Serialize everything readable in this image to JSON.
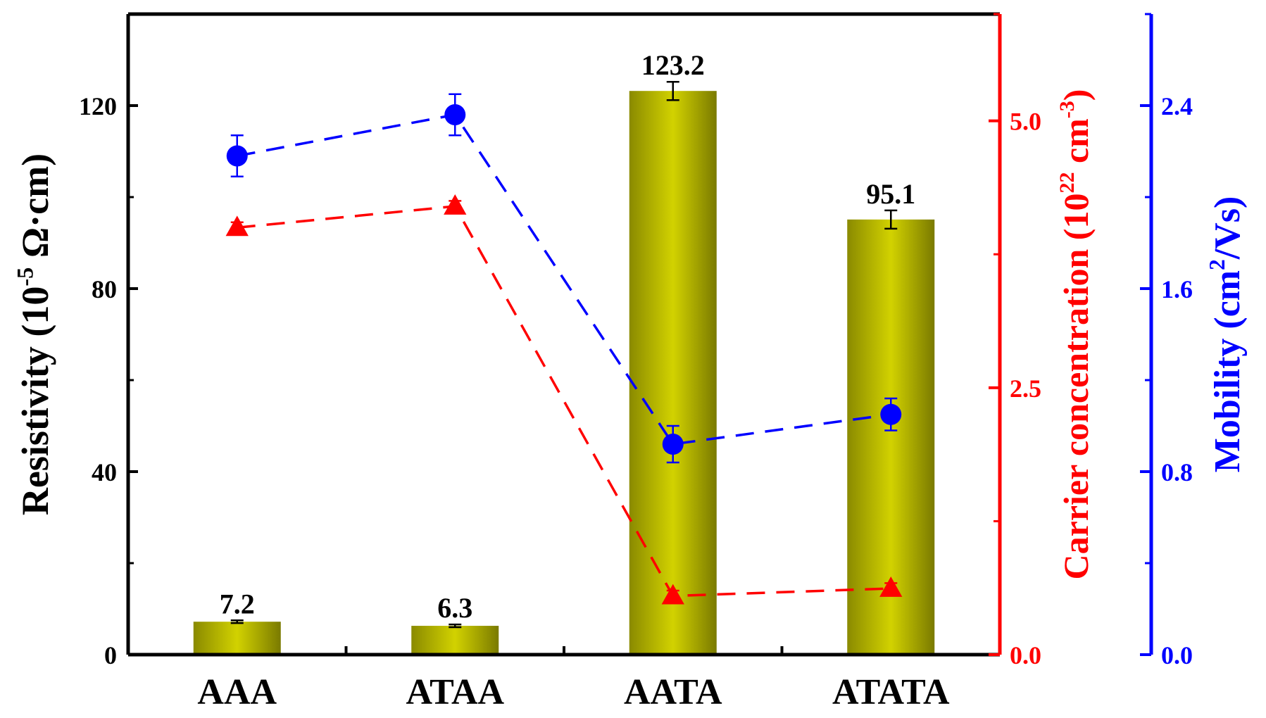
{
  "chart_data": {
    "type": "bar",
    "categories": [
      "AAA",
      "ATAA",
      "AATA",
      "ATATA"
    ],
    "series": [
      {
        "values": [
          7.2,
          6.3,
          123.2,
          95.1
        ],
        "errors": [
          0.3,
          0.3,
          2.0,
          2.0
        ],
        "data_labels": [
          "7.2",
          "6.3",
          "123.2",
          "95.1"
        ],
        "axis": "left",
        "color": "#bdbd00",
        "kind": "bar"
      },
      {
        "values": [
          4.0,
          4.2,
          0.55,
          0.62
        ],
        "errors": [
          0.05,
          0.05,
          0.05,
          0.05
        ],
        "axis": "right1",
        "color": "#ff0000",
        "kind": "line",
        "marker": "triangle"
      },
      {
        "values": [
          2.18,
          2.36,
          0.92,
          1.05
        ],
        "errors": [
          0.09,
          0.09,
          0.08,
          0.07
        ],
        "axis": "right2",
        "color": "#0000ff",
        "kind": "line",
        "marker": "circle"
      }
    ],
    "axes": {
      "left": {
        "label_parts": [
          "Resistivity (10",
          "-5",
          " Ω·cm)"
        ],
        "ylim": [
          0,
          140
        ],
        "ticks": [
          0,
          40,
          80,
          120
        ],
        "tick_labels": [
          "0",
          "40",
          "80",
          "120"
        ],
        "color": "#000000"
      },
      "right1": {
        "label_parts": [
          "Carrier concentration (10",
          "22",
          " cm",
          "-3",
          ")"
        ],
        "ylim": [
          0,
          6.0
        ],
        "ticks": [
          0,
          2.5,
          5.0
        ],
        "tick_labels": [
          "0.0",
          "2.5",
          "5.0"
        ],
        "color": "#ff0000"
      },
      "right2": {
        "label_parts": [
          "Mobility (cm",
          "2",
          "/Vs)"
        ],
        "ylim": [
          0,
          2.8
        ],
        "ticks": [
          0,
          0.8,
          1.6,
          2.4
        ],
        "tick_labels": [
          "0.0",
          "0.8",
          "1.6",
          "2.4"
        ],
        "color": "#0000ff"
      }
    },
    "grid": false
  }
}
